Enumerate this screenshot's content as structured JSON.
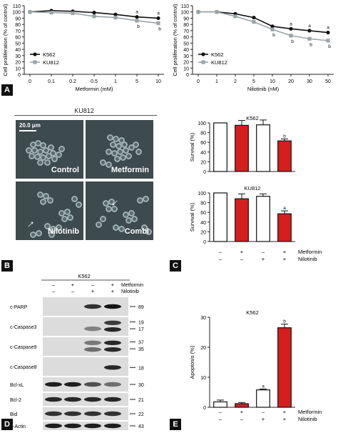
{
  "panels": {
    "A": "A",
    "B": "B",
    "C": "C",
    "D": "D",
    "E": "E"
  },
  "colors": {
    "black": "#111111",
    "gray": "#9aa4a8",
    "red": "#d51f1f",
    "white": "#ffffff"
  },
  "chart_data": [
    {
      "id": "A1",
      "type": "line",
      "xlabel": "Metformin (mM)",
      "ylabel": "Cell proliferation (% of control)",
      "categories": [
        "0",
        "0.1",
        "0.2",
        "0.5",
        "1",
        "5",
        "10"
      ],
      "ylim": [
        0,
        110
      ],
      "yticks": [
        0,
        10,
        20,
        30,
        40,
        50,
        60,
        70,
        80,
        90,
        100,
        110
      ],
      "series": [
        {
          "name": "K562",
          "color": "#111111",
          "values": [
            100,
            102,
            101,
            99,
            96,
            92,
            90
          ],
          "labels": [
            "",
            "",
            "",
            "",
            "",
            "a",
            "a"
          ]
        },
        {
          "name": "KU812",
          "color": "#9aa4a8",
          "values": [
            100,
            99,
            98,
            93,
            91,
            86,
            82
          ],
          "labels": [
            "",
            "",
            "",
            "",
            "",
            "b",
            "b"
          ]
        }
      ]
    },
    {
      "id": "A2",
      "type": "line",
      "xlabel": "Nilotinib (nM)",
      "ylabel": "Cell proliferation (% of control)",
      "categories": [
        "0",
        "1",
        "2",
        "5",
        "10",
        "20",
        "30",
        "50"
      ],
      "ylim": [
        0,
        110
      ],
      "yticks": [
        0,
        10,
        20,
        30,
        40,
        50,
        60,
        70,
        80,
        90,
        100,
        110
      ],
      "series": [
        {
          "name": "K562",
          "color": "#111111",
          "values": [
            100,
            100,
            97,
            91,
            77,
            73,
            70,
            67
          ],
          "labels": [
            "",
            "",
            "",
            "",
            "",
            "a",
            "a",
            "a"
          ]
        },
        {
          "name": "KU812",
          "color": "#9aa4a8",
          "values": [
            100,
            100,
            93,
            84,
            72,
            62,
            57,
            54
          ],
          "labels": [
            "",
            "",
            "",
            "",
            "b",
            "b",
            "b",
            "b"
          ]
        }
      ]
    },
    {
      "id": "C1",
      "type": "bar",
      "title": "K562",
      "ylabel": "Survival (%)",
      "ylim": [
        0,
        100
      ],
      "yticks": [
        0,
        20,
        40,
        60,
        80,
        100
      ],
      "values": [
        100,
        95,
        96,
        63
      ],
      "errors": [
        0,
        10,
        10,
        4
      ],
      "fills": [
        "#ffffff",
        "#d51f1f",
        "#ffffff",
        "#d51f1f"
      ],
      "labels": [
        "",
        "",
        "",
        "b"
      ]
    },
    {
      "id": "C2",
      "type": "bar",
      "title": "KU812",
      "ylabel": "Survival (%)",
      "ylim": [
        0,
        100
      ],
      "yticks": [
        0,
        20,
        40,
        60,
        80,
        100
      ],
      "values": [
        100,
        88,
        93,
        57
      ],
      "errors": [
        0,
        10,
        5,
        6
      ],
      "fills": [
        "#ffffff",
        "#d51f1f",
        "#ffffff",
        "#d51f1f"
      ],
      "labels": [
        "",
        "",
        "",
        "a"
      ]
    },
    {
      "id": "E",
      "type": "bar",
      "title": "K562",
      "ylabel": "Apoptosis (%)",
      "ylim": [
        0,
        30
      ],
      "yticks": [
        0,
        10,
        20,
        30
      ],
      "values": [
        1.8,
        1.2,
        5.8,
        26.5
      ],
      "errors": [
        0.6,
        0.4,
        0.3,
        1.2
      ],
      "fills": [
        "#ffffff",
        "#d51f1f",
        "#ffffff",
        "#d51f1f"
      ],
      "labels": [
        "",
        "",
        "a",
        "b"
      ]
    }
  ],
  "treatment_rows": {
    "metformin_label": "Metformin",
    "nilotinib_label": "Nilotinib",
    "metformin": [
      "–",
      "+",
      "–",
      "+"
    ],
    "nilotinib": [
      "–",
      "–",
      "+",
      "+"
    ]
  },
  "micrograph": {
    "title": "KU812",
    "scale": "20.0 μm",
    "panels": [
      "Control",
      "Metformin",
      "Nilotinib",
      "Combi"
    ]
  },
  "western": {
    "title": "K562",
    "markers": [
      "c-PARP",
      "c-Caspase3",
      "c-Caspase9",
      "c-Caspase8",
      "Bcl-xL",
      "Bcl-2",
      "Bid",
      "β-Actin"
    ],
    "kda": [
      "89",
      "19",
      "17",
      "37",
      "35",
      "18",
      "30",
      "21",
      "22",
      "43"
    ]
  }
}
